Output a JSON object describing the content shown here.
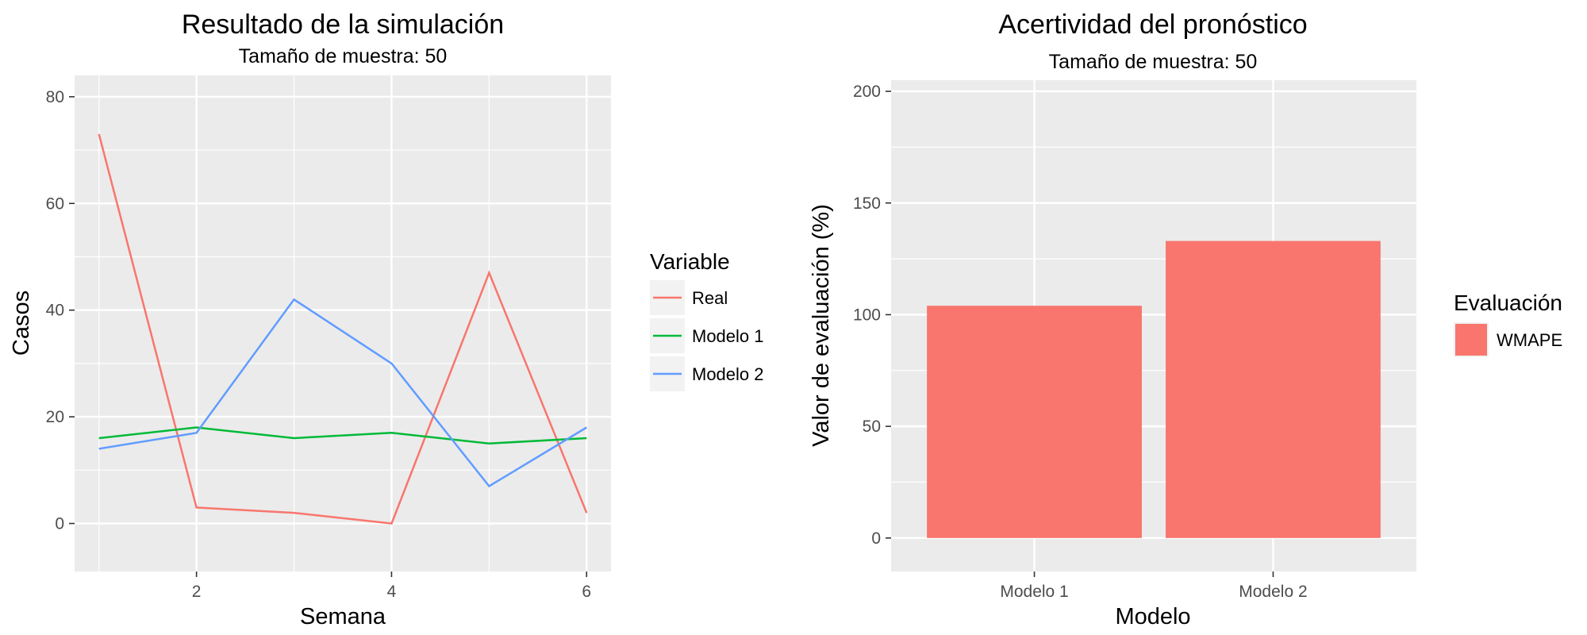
{
  "chart_data": [
    {
      "type": "line",
      "title": "Resultado de la simulación",
      "subtitle": "Tamaño de muestra: 50",
      "xlabel": "Semana",
      "ylabel": "Casos",
      "x": [
        1,
        2,
        3,
        4,
        5,
        6
      ],
      "xlim": [
        0.75,
        6.25
      ],
      "ylim": [
        -9,
        84
      ],
      "x_ticks": [
        2,
        4,
        6
      ],
      "x_tick_labels": [
        "2",
        "4",
        "6"
      ],
      "y_ticks": [
        0,
        20,
        40,
        60,
        80
      ],
      "y_tick_labels": [
        "0",
        "20",
        "40",
        "60",
        "80"
      ],
      "grid": true,
      "legend": {
        "title": "Variable",
        "position": "right",
        "labels": [
          "Real",
          "Modelo 1",
          "Modelo 2"
        ]
      },
      "series": [
        {
          "name": "Real",
          "color": "#F8766D",
          "values": [
            73,
            3,
            2,
            0,
            47,
            2
          ]
        },
        {
          "name": "Modelo 1",
          "color": "#00BA38",
          "values": [
            16,
            18,
            16,
            17,
            15,
            16
          ]
        },
        {
          "name": "Modelo 2",
          "color": "#619CFF",
          "values": [
            14,
            17,
            42,
            30,
            7,
            18
          ]
        }
      ]
    },
    {
      "type": "bar",
      "title": "Acertividad del pronóstico",
      "subtitle": "Tamaño de muestra: 50",
      "xlabel": "Modelo",
      "ylabel": "Valor de evaluación (%)",
      "categories": [
        "Modelo 1",
        "Modelo 2"
      ],
      "ylim": [
        -15,
        205
      ],
      "y_ticks": [
        0,
        50,
        100,
        150,
        200
      ],
      "y_tick_labels": [
        "0",
        "50",
        "100",
        "150",
        "200"
      ],
      "grid": true,
      "legend": {
        "title": "Evaluación",
        "position": "right",
        "labels": [
          "WMAPE"
        ]
      },
      "series": [
        {
          "name": "WMAPE",
          "color": "#F8766D",
          "values": [
            104,
            133
          ]
        }
      ]
    }
  ]
}
